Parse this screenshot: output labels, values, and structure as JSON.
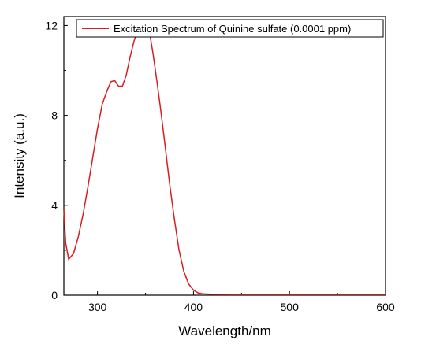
{
  "chart_data": {
    "type": "line",
    "xlabel": "Wavelength/nm",
    "ylabel": "Intensity (a.u.)",
    "xlim": [
      265,
      600
    ],
    "ylim": [
      0,
      12.4
    ],
    "x_ticks": [
      300,
      400,
      500,
      600
    ],
    "x_tick_labels": [
      "300",
      "400",
      "500",
      "600"
    ],
    "y_ticks": [
      0,
      4,
      8,
      12
    ],
    "y_tick_labels": [
      "0",
      "4",
      "8",
      "12"
    ],
    "grid": false,
    "legend_position": "top",
    "series": [
      {
        "name": "Excitation Spectrum of Quinine sulfate (0.0001 ppm)",
        "color": "#d81e1e",
        "x": [
          265,
          267,
          270,
          275,
          280,
          285,
          290,
          295,
          300,
          305,
          310,
          314,
          318,
          322,
          326,
          330,
          334,
          338,
          342,
          346,
          348,
          350,
          352,
          355,
          358,
          362,
          366,
          370,
          375,
          380,
          385,
          390,
          395,
          400,
          405,
          410,
          420,
          440,
          460,
          500,
          550,
          600
        ],
        "y": [
          3.8,
          2.3,
          1.6,
          1.85,
          2.6,
          3.6,
          4.8,
          6.1,
          7.4,
          8.5,
          9.1,
          9.5,
          9.55,
          9.3,
          9.3,
          9.8,
          10.6,
          11.3,
          11.8,
          12.05,
          12.1,
          12.05,
          11.9,
          11.5,
          10.7,
          9.5,
          8.2,
          6.8,
          5.0,
          3.4,
          2.0,
          1.05,
          0.5,
          0.22,
          0.1,
          0.06,
          0.04,
          0.03,
          0.03,
          0.03,
          0.03,
          0.03
        ]
      }
    ]
  }
}
